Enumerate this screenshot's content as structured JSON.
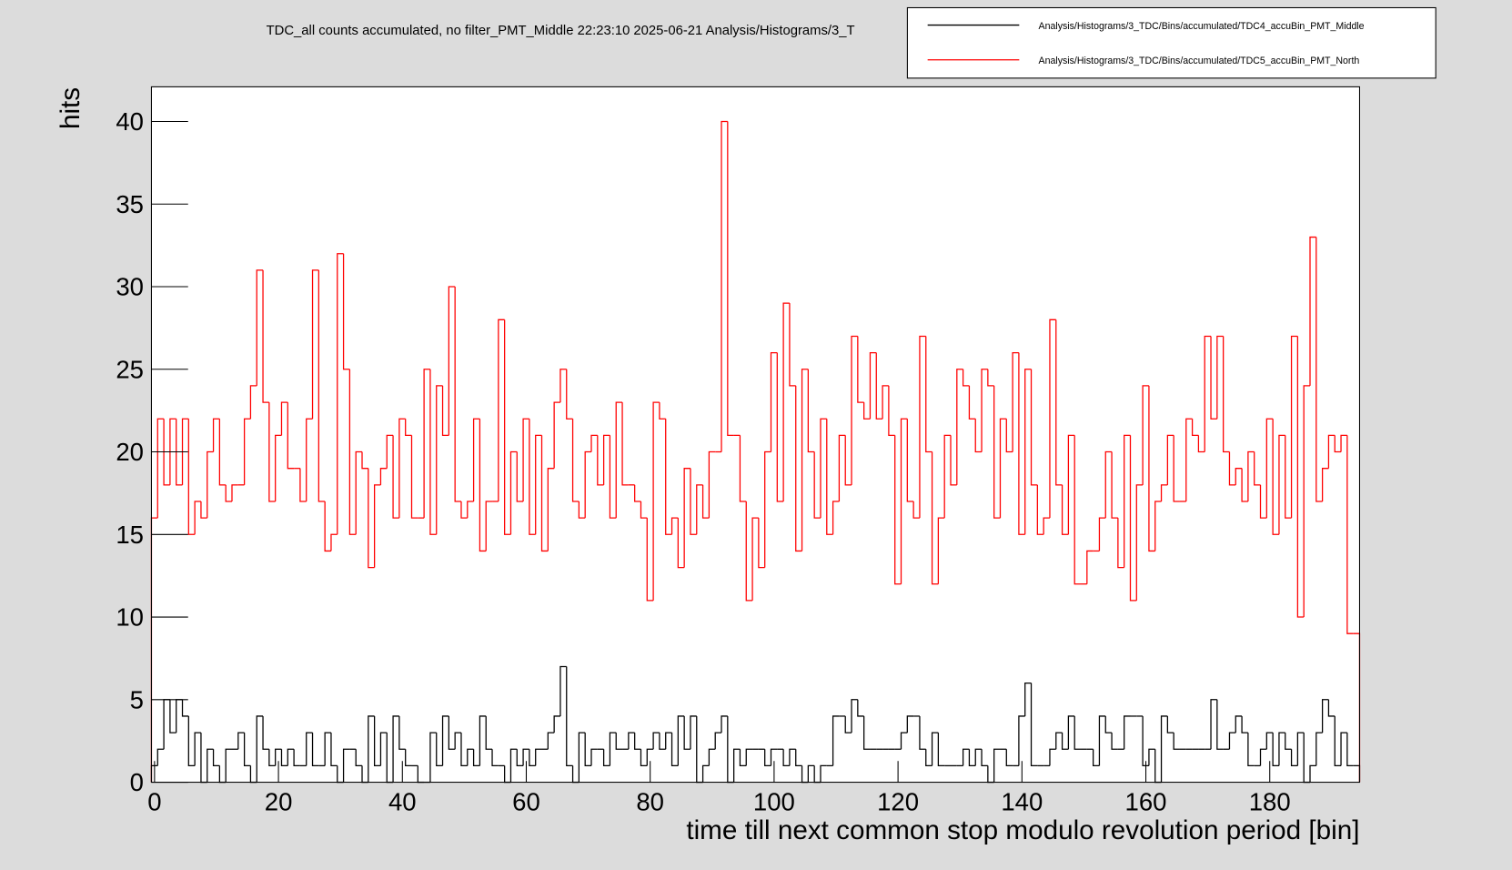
{
  "chart_data": {
    "type": "histogram",
    "title": "TDC_all counts accumulated, no filter_PMT_Middle  22:23:10  2025-06-21  Analysis/Histograms/3_T",
    "x_label": "time till next common stop modulo revolution period [bin]",
    "y_label": "hits",
    "legend_position": "top-right",
    "bins": [
      -0.5,
      0.5,
      1.5,
      2.5,
      3.5,
      4.5,
      5.5,
      6.5,
      7.5,
      8.5,
      9.5,
      10.5,
      11.5,
      12.5,
      13.5,
      14.5,
      15.5,
      16.5,
      17.5,
      18.5,
      19.5,
      20.5,
      21.5,
      22.5,
      23.5,
      24.5,
      25.5,
      26.5,
      27.5,
      28.5,
      29.5,
      30.5,
      31.5,
      32.5,
      33.5,
      34.5,
      35.5,
      36.5,
      37.5,
      38.5,
      39.5,
      40.5,
      41.5,
      42.5,
      43.5,
      44.5,
      45.5,
      46.5,
      47.5,
      48.5,
      49.5,
      50.5,
      51.5,
      52.5,
      53.5,
      54.5,
      55.5,
      56.5,
      57.5,
      58.5,
      59.5,
      60.5,
      61.5,
      62.5,
      63.5,
      64.5,
      65.5,
      66.5,
      67.5,
      68.5,
      69.5,
      70.5,
      71.5,
      72.5,
      73.5,
      74.5,
      75.5,
      76.5,
      77.5,
      78.5,
      79.5,
      80.5,
      81.5,
      82.5,
      83.5,
      84.5,
      85.5,
      86.5,
      87.5,
      88.5,
      89.5,
      90.5,
      91.5,
      92.5,
      93.5,
      94.5,
      95.5,
      96.5,
      97.5,
      98.5,
      99.5,
      100.5,
      101.5,
      102.5,
      103.5,
      104.5,
      105.5,
      106.5,
      107.5,
      108.5,
      109.5,
      110.5,
      111.5,
      112.5,
      113.5,
      114.5,
      115.5,
      116.5,
      117.5,
      118.5,
      119.5,
      120.5,
      121.5,
      122.5,
      123.5,
      124.5,
      125.5,
      126.5,
      127.5,
      128.5,
      129.5,
      130.5,
      131.5,
      132.5,
      133.5,
      134.5,
      135.5,
      136.5,
      137.5,
      138.5,
      139.5,
      140.5,
      141.5,
      142.5,
      143.5,
      144.5,
      145.5,
      146.5,
      147.5,
      148.5,
      149.5,
      150.5,
      151.5,
      152.5,
      153.5,
      154.5,
      155.5,
      156.5,
      157.5,
      158.5,
      159.5,
      160.5,
      161.5,
      162.5,
      163.5,
      164.5,
      165.5,
      166.5,
      167.5,
      168.5,
      169.5,
      170.5,
      171.5,
      172.5,
      173.5,
      174.5,
      175.5,
      176.5,
      177.5,
      178.5,
      179.5,
      180.5,
      181.5,
      182.5,
      183.5,
      184.5,
      185.5,
      186.5,
      187.5,
      188.5,
      189.5,
      190.5,
      191.5,
      192.5,
      193.5,
      194.5
    ],
    "series": [
      {
        "name": "Analysis/Histograms/3_TDC/Bins/accumulated/TDC4_accuBin_PMT_Middle",
        "color": "#000000",
        "values": [
          1,
          2,
          5,
          3,
          5,
          4,
          1,
          3,
          0,
          2,
          1,
          0,
          2,
          2,
          3,
          1,
          0,
          4,
          2,
          1,
          2,
          1,
          2,
          1,
          1,
          3,
          1,
          1,
          3,
          1,
          0,
          2,
          2,
          1,
          0,
          4,
          1,
          3,
          0,
          4,
          2,
          1,
          1,
          0,
          0,
          3,
          1,
          4,
          2,
          3,
          1,
          2,
          1,
          4,
          2,
          1,
          1,
          0,
          2,
          1,
          2,
          1,
          2,
          2,
          3,
          4,
          7,
          1,
          0,
          3,
          1,
          2,
          2,
          1,
          3,
          2,
          2,
          3,
          2,
          1,
          2,
          3,
          2,
          3,
          1,
          4,
          2,
          4,
          0,
          1,
          2,
          3,
          4,
          0,
          2,
          1,
          2,
          2,
          2,
          1,
          2,
          2,
          1,
          2,
          1,
          0,
          1,
          0,
          1,
          1,
          4,
          4,
          3,
          5,
          4,
          2,
          2,
          2,
          2,
          2,
          2,
          3,
          4,
          4,
          2,
          1,
          3,
          1,
          1,
          1,
          1,
          2,
          1,
          2,
          1,
          0,
          2,
          2,
          1,
          1,
          4,
          6,
          1,
          1,
          1,
          2,
          3,
          2,
          4,
          2,
          2,
          2,
          1,
          4,
          3,
          2,
          2,
          4,
          4,
          4,
          1,
          2,
          0,
          4,
          3,
          2,
          2,
          2,
          2,
          2,
          2,
          5,
          2,
          2,
          3,
          4,
          3,
          1,
          1,
          2,
          3,
          1,
          3,
          2,
          1,
          3,
          0,
          1,
          3,
          5,
          4,
          1,
          3,
          1,
          1
        ]
      },
      {
        "name": "Analysis/Histograms/3_TDC/Bins/accumulated/TDC5_accuBin_PMT_North",
        "color": "#ff0000",
        "values": [
          16,
          22,
          18,
          22,
          18,
          22,
          15,
          17,
          16,
          20,
          22,
          18,
          17,
          18,
          18,
          22,
          24,
          31,
          23,
          17,
          21,
          23,
          19,
          19,
          17,
          22,
          31,
          17,
          14,
          15,
          32,
          25,
          15,
          20,
          19,
          13,
          18,
          19,
          21,
          16,
          22,
          21,
          16,
          16,
          25,
          15,
          24,
          21,
          30,
          17,
          16,
          17,
          22,
          14,
          17,
          17,
          28,
          15,
          20,
          17,
          22,
          15,
          21,
          14,
          19,
          23,
          25,
          22,
          17,
          16,
          20,
          21,
          18,
          21,
          16,
          23,
          18,
          18,
          17,
          16,
          11,
          23,
          22,
          15,
          16,
          13,
          19,
          15,
          18,
          16,
          20,
          20,
          40,
          21,
          21,
          17,
          11,
          16,
          13,
          20,
          26,
          17,
          29,
          24,
          14,
          25,
          20,
          16,
          22,
          15,
          17,
          21,
          18,
          27,
          23,
          22,
          26,
          22,
          24,
          21,
          12,
          22,
          17,
          16,
          27,
          20,
          12,
          16,
          21,
          18,
          25,
          24,
          22,
          20,
          25,
          24,
          16,
          22,
          20,
          26,
          15,
          25,
          18,
          15,
          16,
          28,
          18,
          15,
          21,
          12,
          12,
          14,
          14,
          16,
          20,
          16,
          13,
          21,
          11,
          18,
          24,
          14,
          17,
          18,
          21,
          17,
          17,
          22,
          21,
          20,
          27,
          22,
          27,
          20,
          18,
          19,
          17,
          20,
          18,
          16,
          22,
          15,
          21,
          16,
          27,
          10,
          24,
          33,
          17,
          19,
          21,
          20,
          21,
          9,
          9
        ]
      }
    ],
    "xlim": [
      -0.5,
      194.5
    ],
    "xticks": [
      0,
      20,
      40,
      60,
      80,
      100,
      120,
      140,
      160,
      180
    ],
    "ylim": [
      0,
      42.1
    ],
    "yticks": [
      0,
      5,
      10,
      15,
      20,
      25,
      30,
      35,
      40
    ]
  }
}
